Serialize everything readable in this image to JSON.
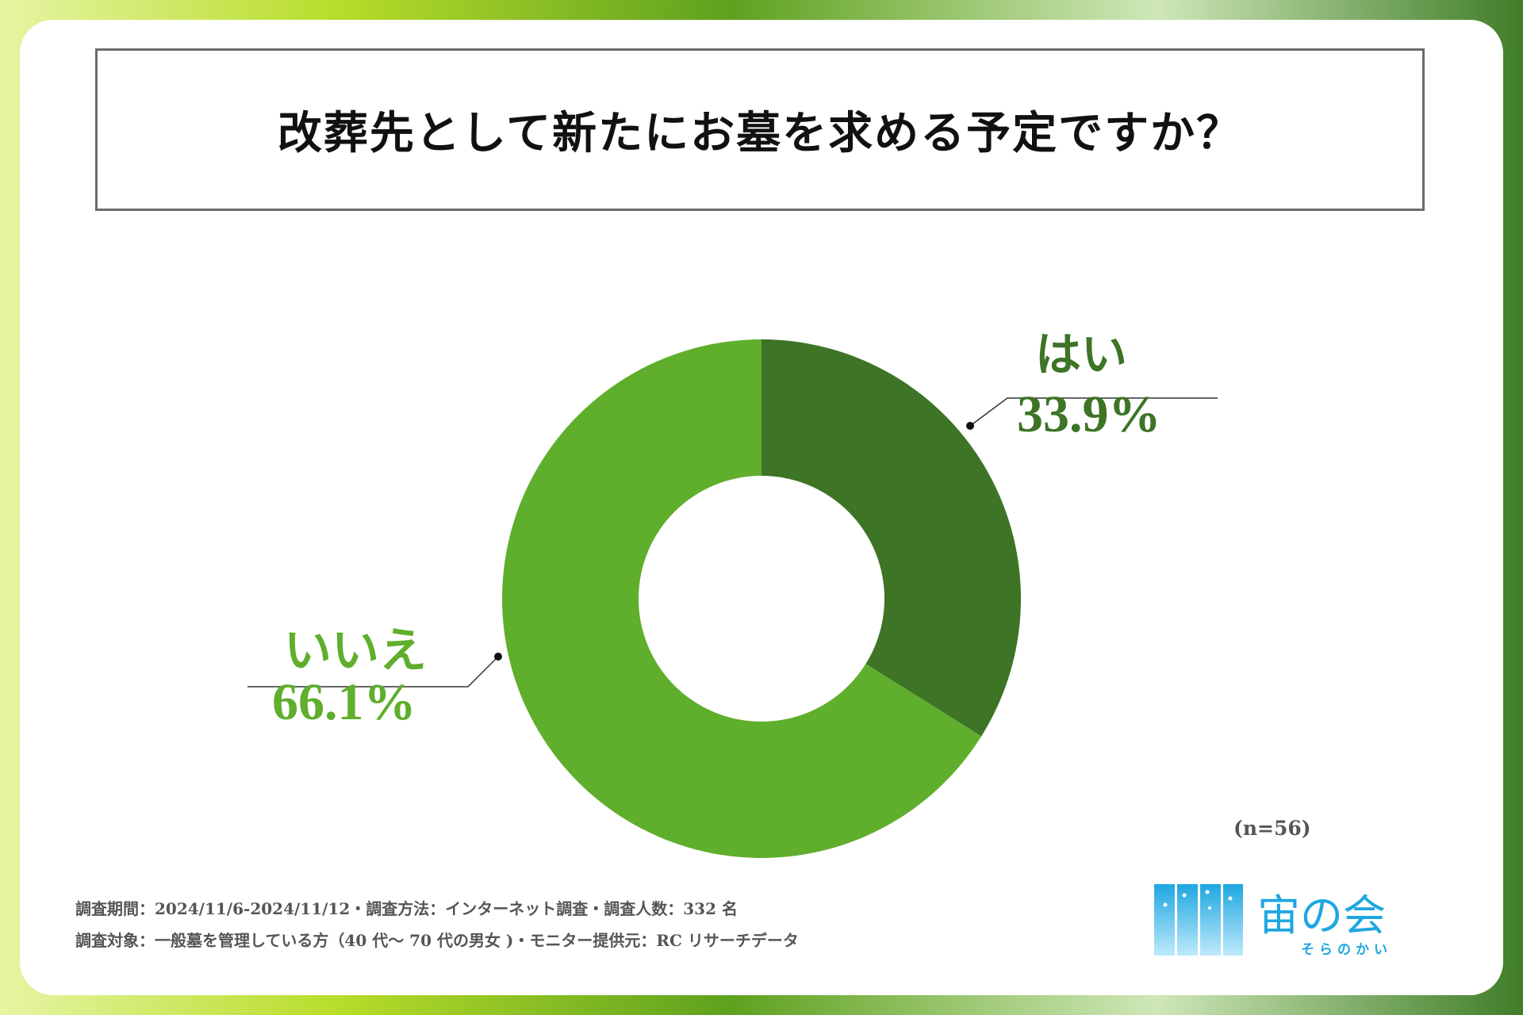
{
  "title": "改葬先として新たにお墓を求める予定ですか？",
  "chart_data": {
    "type": "pie",
    "donut": true,
    "categories": [
      "はい",
      "いいえ"
    ],
    "values": [
      33.9,
      66.1
    ],
    "labels": [
      "33.9%",
      "66.1%"
    ],
    "colors": [
      "#3d7426",
      "#5fae2c"
    ]
  },
  "sample_note": "(n=56)",
  "footnotes": [
    "調査期間：2024/11/6-2024/11/12・調査方法：インターネット調査・調査人数：332 名",
    "調査対象：一般墓を管理している方（40 代～ 70 代の男女 )・モニター提供元：RC リサーチデータ"
  ],
  "logo": {
    "name": "宙の会",
    "reading": "そらのかい",
    "color": "#1ea7e1"
  }
}
